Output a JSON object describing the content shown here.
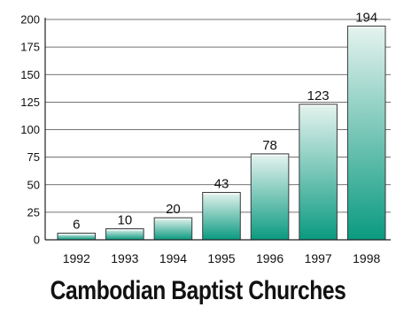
{
  "chart_data": {
    "type": "bar",
    "title": "Cambodian Baptist Churches",
    "categories": [
      "1992",
      "1993",
      "1994",
      "1995",
      "1996",
      "1997",
      "1998"
    ],
    "values": [
      6,
      10,
      20,
      43,
      78,
      123,
      194
    ],
    "data_labels": [
      "6",
      "10",
      "20",
      "43",
      "78",
      "123",
      "194"
    ],
    "xlabel": "",
    "ylabel": "",
    "ylim": [
      0,
      200
    ],
    "yticks": [
      0,
      25,
      50,
      75,
      100,
      125,
      150,
      175,
      200
    ],
    "grid": true,
    "bar_color_top": "#e6f3ef",
    "bar_color_bottom": "#0a9a80",
    "grid_color": "#444444"
  }
}
